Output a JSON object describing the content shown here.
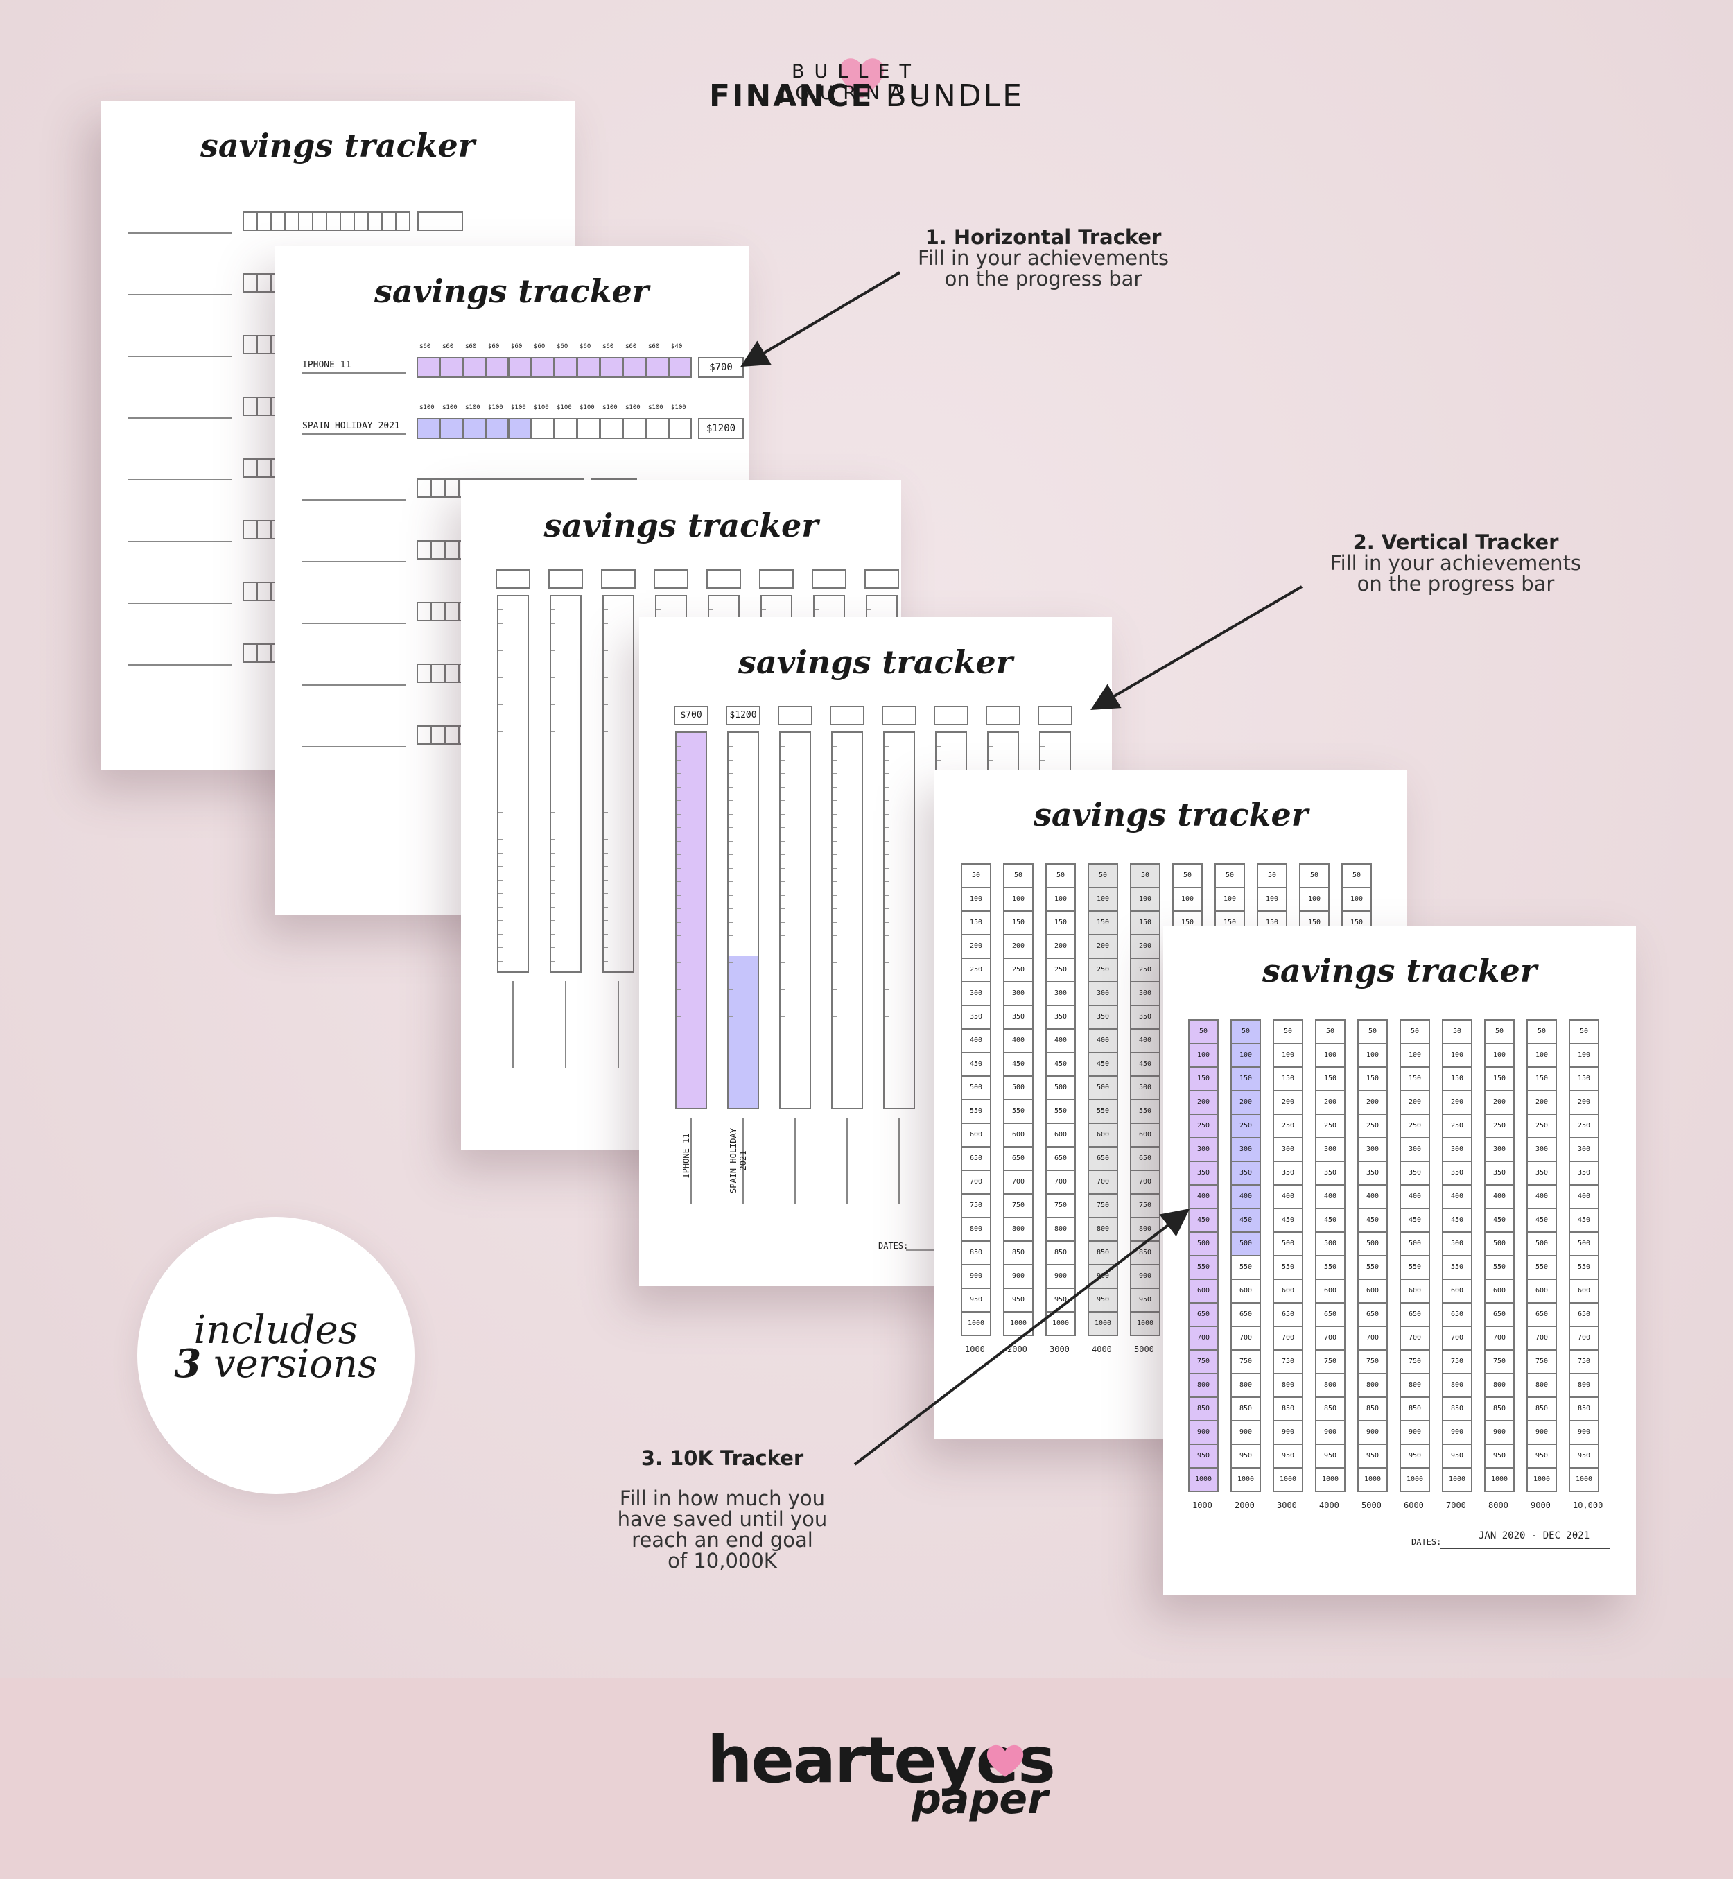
{
  "header": {
    "top": "BULLET JOURNAL",
    "bold": "FINANCE",
    "rest": "BUNDLE"
  },
  "page_title": "savings tracker",
  "horizontal_example": {
    "rows": [
      {
        "label": "IPHONE 11",
        "step": "$60",
        "last_step": "$40",
        "goal": "$700",
        "filled_fraction": 1.0
      },
      {
        "label": "SPAIN HOLIDAY 2021",
        "step": "$100",
        "goal": "$1200",
        "filled_fraction": 0.4166
      }
    ]
  },
  "vertical_example": {
    "columns": [
      {
        "label": "IPHONE 11",
        "goal": "$700",
        "filled_fraction": 1.0
      },
      {
        "label": "SPAIN HOLIDAY 2021",
        "goal": "$1200",
        "filled_fraction": 0.41
      }
    ],
    "dates_label": "DATES:"
  },
  "tenk_example": {
    "cells": [
      "50",
      "100",
      "150",
      "200",
      "250",
      "300",
      "350",
      "400",
      "450",
      "500",
      "550",
      "600",
      "650",
      "700",
      "750",
      "800",
      "850",
      "900",
      "950",
      "1000"
    ],
    "column_totals": [
      "1000",
      "2000",
      "3000",
      "4000",
      "5000",
      "6000",
      "7000",
      "8000",
      "9000",
      "10,000"
    ],
    "filled_columns": [
      {
        "column": 1,
        "filled_count": 20
      },
      {
        "column": 2,
        "filled_count": 10
      }
    ],
    "dates_label": "DATES:",
    "dates_value": "JAN 2020 - DEC 2021"
  },
  "annotations": {
    "a1": {
      "title": "1. Horizontal Tracker",
      "line1": "Fill in your achievements",
      "line2": "on the progress bar"
    },
    "a2": {
      "title": "2. Vertical Tracker",
      "line1": "Fill in your achievements",
      "line2": "on the progress bar"
    },
    "a3": {
      "title": "3. 10K Tracker",
      "line1": "Fill in how much you",
      "line2": "have saved until you",
      "line3": "reach an end goal",
      "line4": "of 10,000K"
    }
  },
  "badge": {
    "line1": "includes",
    "number": "3",
    "word": "versions"
  },
  "brand": {
    "name": "hearteyes",
    "sub": "paper"
  },
  "colors": {
    "purple": "#dcc3f8",
    "blue": "#c6c4fb",
    "gray": "#e4e4e4",
    "pink_heart": "#f08bb4",
    "background": "#ecdfe2",
    "footer": "#e9d2d5"
  }
}
